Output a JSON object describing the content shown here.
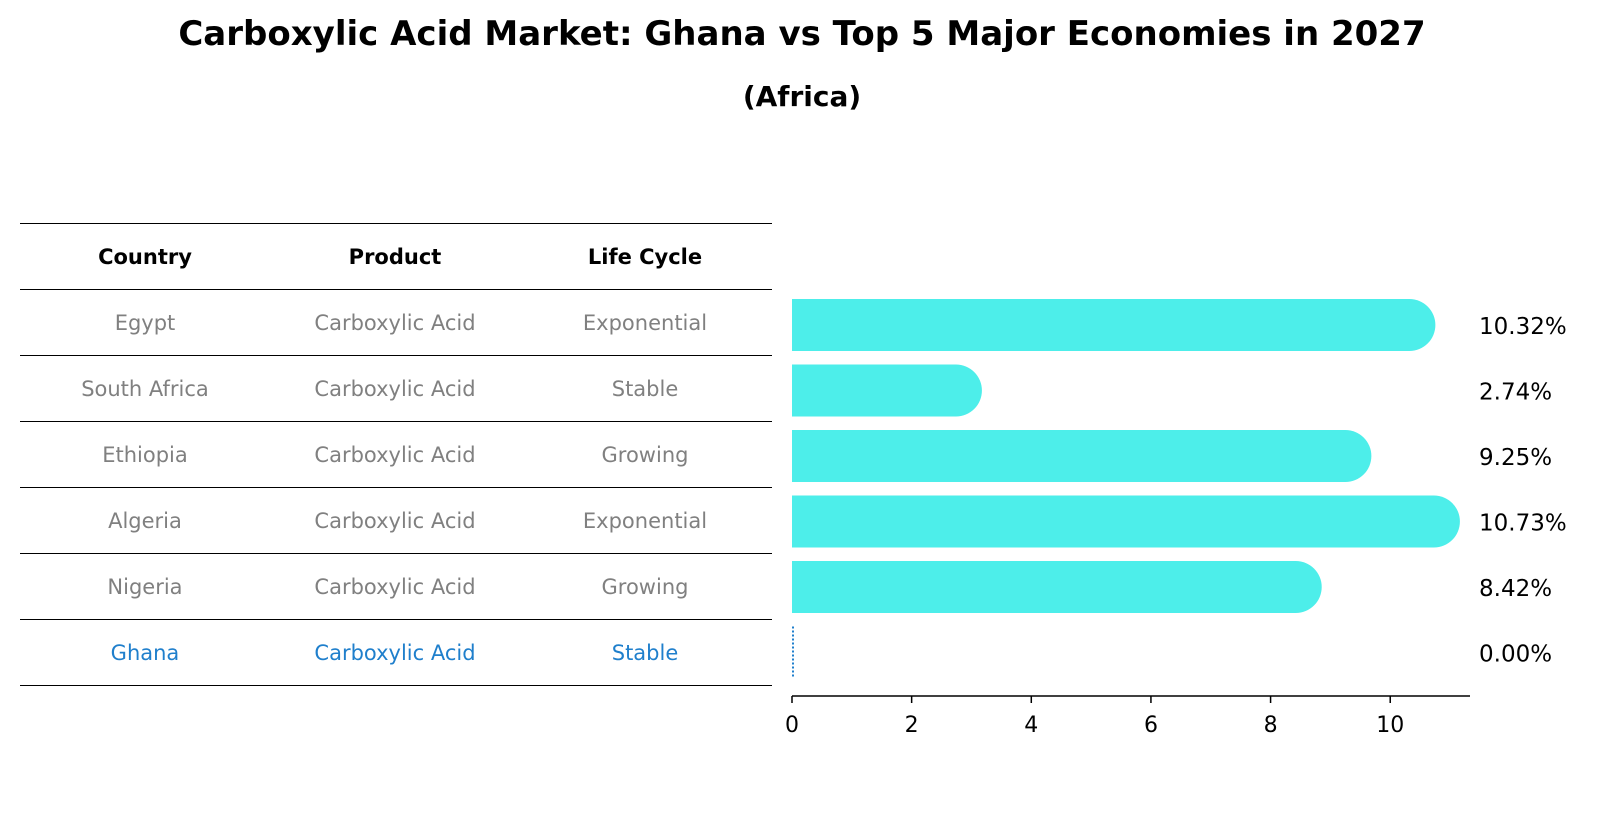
{
  "title": "Carboxylic Acid Market: Ghana vs Top 5 Major Economies in 2027",
  "subtitle": "(Africa)",
  "table": {
    "headers": [
      "Country",
      "Product",
      "Life Cycle"
    ],
    "rows": [
      [
        "Egypt",
        "Carboxylic Acid",
        "Exponential"
      ],
      [
        "South Africa",
        "Carboxylic Acid",
        "Stable"
      ],
      [
        "Ethiopia",
        "Carboxylic Acid",
        "Growing"
      ],
      [
        "Algeria",
        "Carboxylic Acid",
        "Exponential"
      ],
      [
        "Nigeria",
        "Carboxylic Acid",
        "Growing"
      ],
      [
        "Ghana",
        "Carboxylic Acid",
        "Stable"
      ]
    ]
  },
  "colors": {
    "bar": "#4deeea",
    "highlight": "#1f7fcc",
    "muted": "#808080"
  },
  "chart_data": {
    "type": "bar",
    "orientation": "horizontal",
    "categories": [
      "Egypt",
      "South Africa",
      "Ethiopia",
      "Algeria",
      "Nigeria",
      "Ghana"
    ],
    "values": [
      10.32,
      2.74,
      9.25,
      10.73,
      8.42,
      0.0
    ],
    "value_labels": [
      "10.32%",
      "2.74%",
      "9.25%",
      "10.73%",
      "8.42%",
      "0.00%"
    ],
    "xlim": [
      0,
      11.3
    ],
    "xticks": [
      0,
      2,
      4,
      6,
      8,
      10
    ],
    "xtick_labels": [
      "0",
      "2",
      "4",
      "6",
      "8",
      "10"
    ],
    "title": "Carboxylic Acid Market: Ghana vs Top 5 Major Economies in 2027",
    "xlabel": "",
    "ylabel": ""
  }
}
